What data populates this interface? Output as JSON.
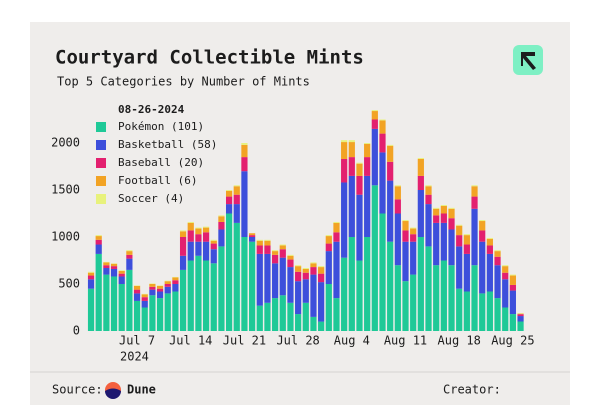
{
  "chart_data": {
    "type": "stacked_bar",
    "title": "Courtyard Collectible Mints",
    "subtitle": "Top 5 Categories by Number of Mints",
    "legend_header": "08-26-2024",
    "x_year_label": "2024",
    "source_label": "Source:",
    "source_name": "Dune",
    "creator_label": "Creator:",
    "categories": [
      null,
      null,
      null,
      null,
      null,
      null,
      "Jul 7",
      null,
      null,
      null,
      null,
      null,
      null,
      "Jul 14",
      null,
      null,
      null,
      null,
      null,
      null,
      "Jul 21",
      null,
      null,
      null,
      null,
      null,
      null,
      "Jul 28",
      null,
      null,
      null,
      null,
      null,
      null,
      "Aug 4",
      null,
      null,
      null,
      null,
      null,
      null,
      "Aug 11",
      null,
      null,
      null,
      null,
      null,
      null,
      "Aug 18",
      null,
      null,
      null,
      null,
      null,
      null,
      "Aug 25",
      null
    ],
    "ylim": [
      0,
      2500
    ],
    "yticks": [
      0,
      500,
      1000,
      1500,
      2000
    ],
    "grid": false,
    "series": [
      {
        "name": "Pokémon (101)",
        "color": "#1fc997",
        "values": [
          450,
          820,
          600,
          580,
          500,
          650,
          320,
          250,
          380,
          350,
          400,
          420,
          650,
          750,
          800,
          750,
          720,
          900,
          1250,
          1150,
          1000,
          950,
          270,
          300,
          350,
          380,
          300,
          180,
          300,
          150,
          100,
          500,
          350,
          780,
          1000,
          750,
          1000,
          1550,
          1250,
          950,
          700,
          530,
          600,
          1000,
          900,
          700,
          750,
          700,
          450,
          420,
          700,
          400,
          420,
          350,
          250,
          180,
          101
        ]
      },
      {
        "name": "Basketball (58)",
        "color": "#3d4fdb",
        "values": [
          100,
          100,
          70,
          80,
          80,
          120,
          80,
          70,
          60,
          70,
          70,
          80,
          150,
          200,
          150,
          200,
          150,
          180,
          100,
          200,
          700,
          50,
          550,
          520,
          370,
          400,
          380,
          350,
          250,
          450,
          420,
          350,
          600,
          800,
          650,
          700,
          650,
          600,
          650,
          650,
          550,
          420,
          350,
          500,
          450,
          450,
          400,
          380,
          450,
          400,
          600,
          550,
          400,
          350,
          300,
          250,
          58
        ]
      },
      {
        "name": "Baseball (20)",
        "color": "#e3206f",
        "values": [
          40,
          50,
          30,
          30,
          30,
          40,
          40,
          40,
          30,
          30,
          30,
          40,
          200,
          120,
          80,
          100,
          60,
          80,
          80,
          100,
          150,
          20,
          90,
          90,
          90,
          90,
          80,
          100,
          70,
          80,
          90,
          80,
          100,
          250,
          200,
          200,
          200,
          100,
          200,
          200,
          150,
          120,
          80,
          150,
          100,
          80,
          100,
          120,
          120,
          100,
          130,
          120,
          90,
          90,
          70,
          60,
          20
        ]
      },
      {
        "name": "Football (6)",
        "color": "#f2a324",
        "values": [
          30,
          40,
          30,
          25,
          30,
          40,
          40,
          30,
          30,
          30,
          30,
          30,
          60,
          80,
          60,
          50,
          30,
          60,
          60,
          90,
          130,
          20,
          50,
          50,
          40,
          40,
          40,
          60,
          40,
          40,
          70,
          80,
          100,
          180,
          160,
          130,
          140,
          90,
          140,
          170,
          140,
          100,
          60,
          180,
          90,
          70,
          80,
          100,
          100,
          100,
          110,
          100,
          70,
          60,
          70,
          100,
          6
        ]
      },
      {
        "name": "Soccer (4)",
        "color": "#e8f27c",
        "values": [
          10,
          10,
          5,
          5,
          5,
          10,
          5,
          5,
          5,
          5,
          5,
          5,
          10,
          10,
          10,
          10,
          10,
          10,
          10,
          10,
          20,
          0,
          10,
          10,
          10,
          10,
          10,
          10,
          10,
          10,
          10,
          10,
          10,
          20,
          20,
          10,
          10,
          10,
          10,
          10,
          10,
          10,
          10,
          10,
          10,
          10,
          10,
          10,
          10,
          10,
          10,
          10,
          10,
          10,
          10,
          10,
          4
        ]
      }
    ]
  }
}
